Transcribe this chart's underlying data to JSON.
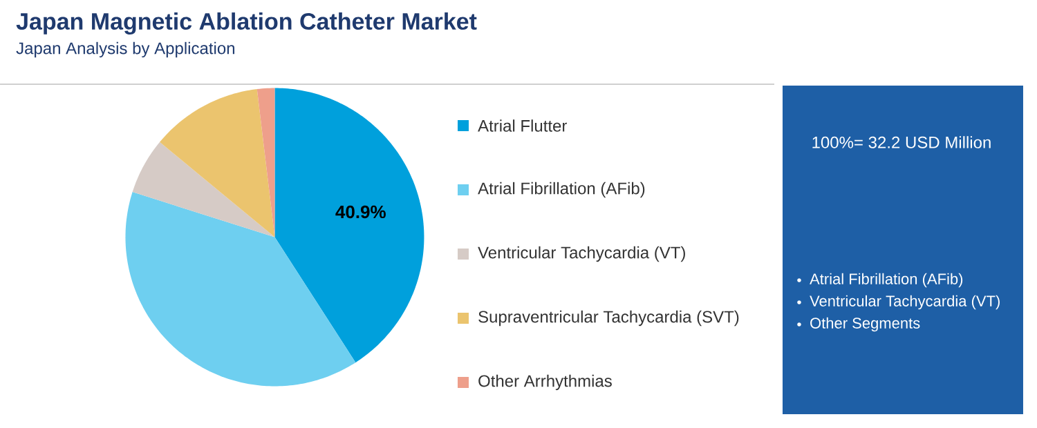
{
  "chart_data": {
    "type": "pie",
    "title": "Japan Magnetic Ablation Catheter Market",
    "subtitle": "Japan Analysis by Application",
    "categories": [
      "Atrial Flutter",
      "Atrial Fibrillation (AFib)",
      "Ventricular Tachycardia (VT)",
      "Supraventricular Tachycardia (SVT)",
      "Other Arrhythmias"
    ],
    "values": [
      40.9,
      39.0,
      6.1,
      12.1,
      1.9
    ],
    "colors": [
      "#00a0dc",
      "#6ecff0",
      "#d6cbc6",
      "#ebc46e",
      "#ee9f8b"
    ],
    "value_labels": [
      "40.9%",
      null,
      null,
      null,
      null
    ],
    "legend": "right",
    "annotations": [
      "100%= 32.2 USD Million",
      "Atrial Fibrillation (AFib)",
      "Ventricular Tachycardia (VT)",
      "Other Segments"
    ]
  }
}
